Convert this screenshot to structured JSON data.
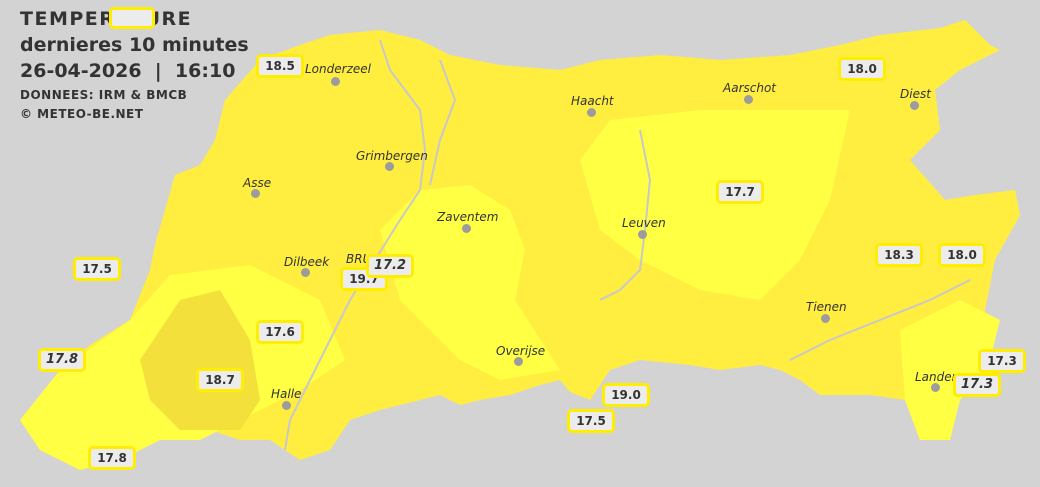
{
  "header": {
    "title": "TEMPERATURE",
    "subtitle": "dernieres 10 minutes",
    "datetime": "26-04-2026  |  16:10",
    "source": "DONNEES: IRM & BMCB",
    "copyright": "© METEO-BE.NET"
  },
  "colors": {
    "background": "#d3d3d3",
    "zone_light": "#ffff44",
    "zone_mid": "#ffee40",
    "zone_dark": "#f5e23c",
    "badge_border": "#ffee00",
    "river": "#c8c8c8"
  },
  "cities": [
    {
      "name": "Londerzeel"
    },
    {
      "name": "Haacht"
    },
    {
      "name": "Aarschot"
    },
    {
      "name": "Diest"
    },
    {
      "name": "Grimbergen"
    },
    {
      "name": "Asse"
    },
    {
      "name": "Zaventem"
    },
    {
      "name": "Leuven"
    },
    {
      "name": "Dilbeek"
    },
    {
      "name": "BRU"
    },
    {
      "name": "Tienen"
    },
    {
      "name": "Overijse"
    },
    {
      "name": "Halle"
    },
    {
      "name": "Lander"
    }
  ],
  "stations": [
    {
      "value": "18.5"
    },
    {
      "value": "18.0"
    },
    {
      "value": "17.7"
    },
    {
      "value": "17.5"
    },
    {
      "value": "17.2"
    },
    {
      "value": "19.7"
    },
    {
      "value": "18.3"
    },
    {
      "value": "18.0"
    },
    {
      "value": "17.6"
    },
    {
      "value": "17.8"
    },
    {
      "value": "18.7"
    },
    {
      "value": "17.3"
    },
    {
      "value": "17.3"
    },
    {
      "value": "19.0"
    },
    {
      "value": "17.5"
    },
    {
      "value": "17.8"
    }
  ]
}
